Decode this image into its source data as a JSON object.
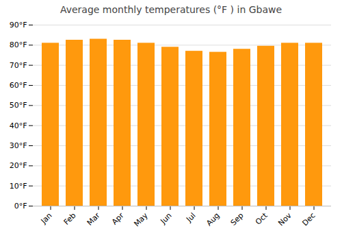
{
  "chart_data": {
    "type": "bar",
    "title": "Average monthly temperatures (°F ) in Gbawe",
    "categories": [
      "Jan",
      "Feb",
      "Mar",
      "Apr",
      "May",
      "Jun",
      "Jul",
      "Aug",
      "Sep",
      "Oct",
      "Nov",
      "Dec"
    ],
    "values": [
      81,
      82.5,
      83,
      82.5,
      81,
      79,
      77,
      76.5,
      78,
      79.5,
      81,
      81
    ],
    "color": "#ff990d",
    "ylim": [
      0,
      90
    ],
    "yticks": [
      {
        "value": 0,
        "label": "0°F"
      },
      {
        "value": 10,
        "label": "10°F"
      },
      {
        "value": 20,
        "label": "20°F"
      },
      {
        "value": 30,
        "label": "30°F"
      },
      {
        "value": 40,
        "label": "40°F"
      },
      {
        "value": 50,
        "label": "50°F"
      },
      {
        "value": 60,
        "label": "60°F"
      },
      {
        "value": 70,
        "label": "70°F"
      },
      {
        "value": 80,
        "label": "80°F"
      },
      {
        "value": 90,
        "label": "90°F"
      }
    ],
    "grid": true
  }
}
